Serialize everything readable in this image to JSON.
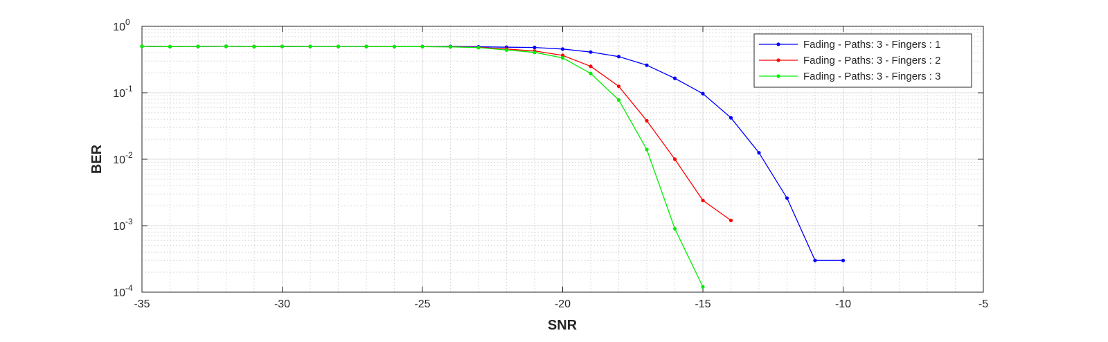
{
  "chart_data": {
    "type": "line",
    "title": "",
    "xlabel": "SNR",
    "ylabel": "BER",
    "xlim": [
      -35,
      -5
    ],
    "ylim": [
      0.0001,
      1
    ],
    "yscale": "log",
    "grid": "major and minor",
    "legend_position": "top-right",
    "x_ticks": [
      -35,
      -30,
      -25,
      -20,
      -15,
      -10,
      -5
    ],
    "x_tick_labels": [
      "-35",
      "-30",
      "-25",
      "-20",
      "-15",
      "-10",
      "-5"
    ],
    "y_ticks": [
      {
        "value": 0.0001,
        "base": "10",
        "exp": "-4"
      },
      {
        "value": 0.001,
        "base": "10",
        "exp": "-3"
      },
      {
        "value": 0.01,
        "base": "10",
        "exp": "-2"
      },
      {
        "value": 0.1,
        "base": "10",
        "exp": "-1"
      },
      {
        "value": 1,
        "base": "10",
        "exp": "0"
      }
    ],
    "series": [
      {
        "name": "Fading - Paths: 3 - Fingers : 1",
        "color": "#0000ff",
        "x": [
          -35,
          -34,
          -33,
          -32,
          -31,
          -30,
          -29,
          -28,
          -27,
          -26,
          -25,
          -24,
          -23,
          -22,
          -21,
          -20,
          -19,
          -18,
          -17,
          -16,
          -15,
          -14,
          -13,
          -12,
          -11,
          -10
        ],
        "y": [
          0.5,
          0.495,
          0.497,
          0.5,
          0.496,
          0.498,
          0.497,
          0.497,
          0.497,
          0.495,
          0.497,
          0.498,
          0.492,
          0.485,
          0.48,
          0.455,
          0.41,
          0.35,
          0.26,
          0.165,
          0.097,
          0.042,
          0.0125,
          0.0026,
          0.0003,
          0.0003
        ]
      },
      {
        "name": "Fading - Paths: 3 - Fingers : 2",
        "color": "#ff0000",
        "x": [
          -35,
          -34,
          -33,
          -32,
          -31,
          -30,
          -29,
          -28,
          -27,
          -26,
          -25,
          -24,
          -23,
          -22,
          -21,
          -20,
          -19,
          -18,
          -17,
          -16,
          -15,
          -14
        ],
        "y": [
          0.5,
          0.495,
          0.497,
          0.5,
          0.496,
          0.498,
          0.497,
          0.497,
          0.497,
          0.495,
          0.495,
          0.492,
          0.482,
          0.455,
          0.425,
          0.365,
          0.25,
          0.125,
          0.038,
          0.01,
          0.0024,
          0.0012
        ]
      },
      {
        "name": "Fading - Paths: 3 - Fingers : 3",
        "color": "#00ee00",
        "x": [
          -35,
          -34,
          -33,
          -32,
          -31,
          -30,
          -29,
          -28,
          -27,
          -26,
          -25,
          -24,
          -23,
          -22,
          -21,
          -20,
          -19,
          -18,
          -17,
          -16,
          -15
        ],
        "y": [
          0.5,
          0.495,
          0.497,
          0.5,
          0.496,
          0.498,
          0.497,
          0.497,
          0.497,
          0.495,
          0.495,
          0.49,
          0.478,
          0.44,
          0.405,
          0.335,
          0.195,
          0.078,
          0.014,
          0.0009,
          0.00012
        ]
      }
    ]
  }
}
